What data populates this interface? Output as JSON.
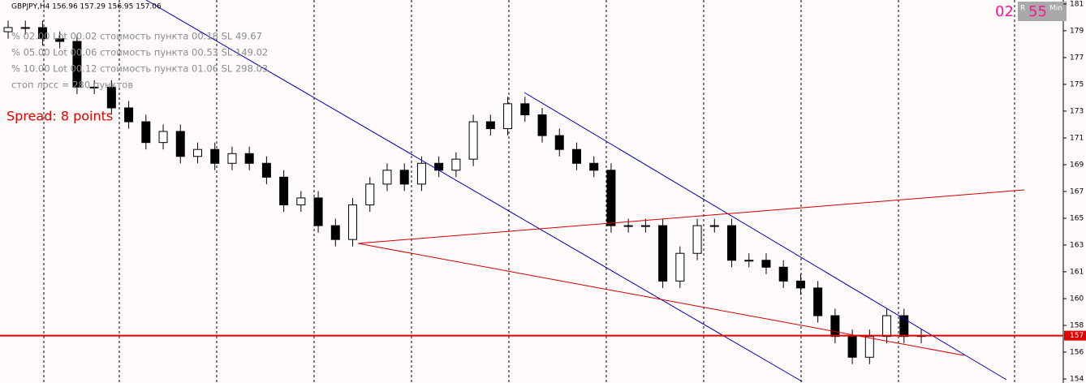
{
  "chart_data": {
    "type": "candlestick",
    "title": "GBPJPY,H4  156.96 157.29 156.95 157.06",
    "annotations": [
      "% 02.00  Lot 00.02  стоимость пункта 00.18  SL 49.67",
      "% 05.00  Lot 00.06  стоимость пункта 00.53  SL 149.02",
      "% 10.00  Lot 00.12  стоимость пункта 01.06  SL 298.03",
      "стоп лосс = 280 пунктов"
    ],
    "spread_label": "Spread: 8 points",
    "timer": {
      "left": "02",
      "right": "55",
      "flag": "R",
      "unit": "Min"
    },
    "current_price": 157.06,
    "current_price_label": "157",
    "ylim": [
      153.64,
      181.29
    ],
    "yticks": [
      {
        "value": 181,
        "label": "181"
      },
      {
        "value": 179.07,
        "label": "179"
      },
      {
        "value": 177.13,
        "label": "177"
      },
      {
        "value": 175.2,
        "label": "175"
      },
      {
        "value": 173.27,
        "label": "173"
      },
      {
        "value": 171.33,
        "label": "171"
      },
      {
        "value": 169.4,
        "label": "169"
      },
      {
        "value": 167.47,
        "label": "167"
      },
      {
        "value": 165.53,
        "label": "165"
      },
      {
        "value": 163.6,
        "label": "163"
      },
      {
        "value": 161.67,
        "label": "161"
      },
      {
        "value": 159.73,
        "label": "160"
      },
      {
        "value": 157.8,
        "label": "158"
      },
      {
        "value": 155.87,
        "label": "156"
      },
      {
        "value": 153.93,
        "label": "154"
      }
    ],
    "series": [
      {
        "open": [
          179.0,
          179.3,
          179.3,
          178.5,
          178.3,
          175,
          175,
          173.5,
          172.5,
          171,
          171.8,
          170,
          170.5,
          169.5,
          170.2,
          169.5,
          168.5,
          166.5,
          167,
          165,
          164,
          166.5,
          168,
          169,
          168,
          169.5,
          169,
          169.8,
          172.5,
          172,
          173.8,
          173,
          171.5,
          170.5,
          169.5,
          169,
          165,
          165,
          165,
          161,
          163,
          165,
          165,
          162.5,
          162.5,
          162,
          161,
          160.5,
          158.5,
          157,
          155.5,
          157,
          158.5,
          157
        ],
        "high": [
          179.8,
          179.8,
          179.8,
          179.0,
          178.8,
          175.5,
          175.5,
          174.0,
          173.0,
          172.3,
          172.3,
          171.0,
          171.0,
          170.7,
          170.7,
          170.0,
          169.0,
          167.5,
          167.5,
          165.5,
          167.0,
          168.5,
          169.5,
          169.5,
          170.0,
          170.0,
          170.3,
          173.0,
          173.0,
          174.3,
          174.3,
          173.5,
          172.0,
          171.0,
          170.0,
          169.5,
          165.5,
          165.5,
          165.5,
          163.5,
          165.5,
          165.5,
          165.5,
          163.0,
          163.0,
          162.5,
          161.5,
          161.0,
          159.0,
          157.5,
          157.5,
          159.0,
          159.0,
          157.56
        ],
        "low": [
          178.5,
          178.8,
          178.0,
          177.8,
          174.5,
          174.5,
          173.0,
          172.0,
          170.5,
          170.5,
          169.5,
          169.5,
          169.0,
          169.0,
          169.0,
          168.0,
          166.0,
          166.0,
          164.5,
          163.5,
          163.5,
          166.0,
          167.5,
          167.5,
          167.5,
          168.5,
          168.5,
          169.3,
          171.5,
          171.5,
          172.5,
          171.0,
          170.0,
          169.0,
          168.5,
          164.5,
          164.5,
          164.5,
          160.5,
          160.5,
          162.5,
          164.5,
          162.0,
          162.0,
          161.5,
          160.5,
          160.0,
          158.0,
          156.5,
          155.0,
          155.0,
          156.5,
          156.5,
          156.5
        ],
        "close": [
          179.3,
          179.3,
          178.5,
          178.3,
          175,
          175,
          173.5,
          172.5,
          171,
          171.8,
          170,
          170.5,
          169.5,
          170.2,
          169.5,
          168.5,
          166.5,
          167,
          165,
          164,
          166.5,
          168,
          169,
          168,
          169.5,
          169,
          169.8,
          172.5,
          172,
          173.8,
          173,
          171.5,
          170.5,
          169.5,
          169,
          165,
          165,
          165,
          161,
          163,
          165,
          165,
          162.5,
          162.5,
          162,
          161,
          160.5,
          158.5,
          157,
          155.5,
          157,
          158.5,
          157,
          157.06
        ]
      }
    ]
  }
}
